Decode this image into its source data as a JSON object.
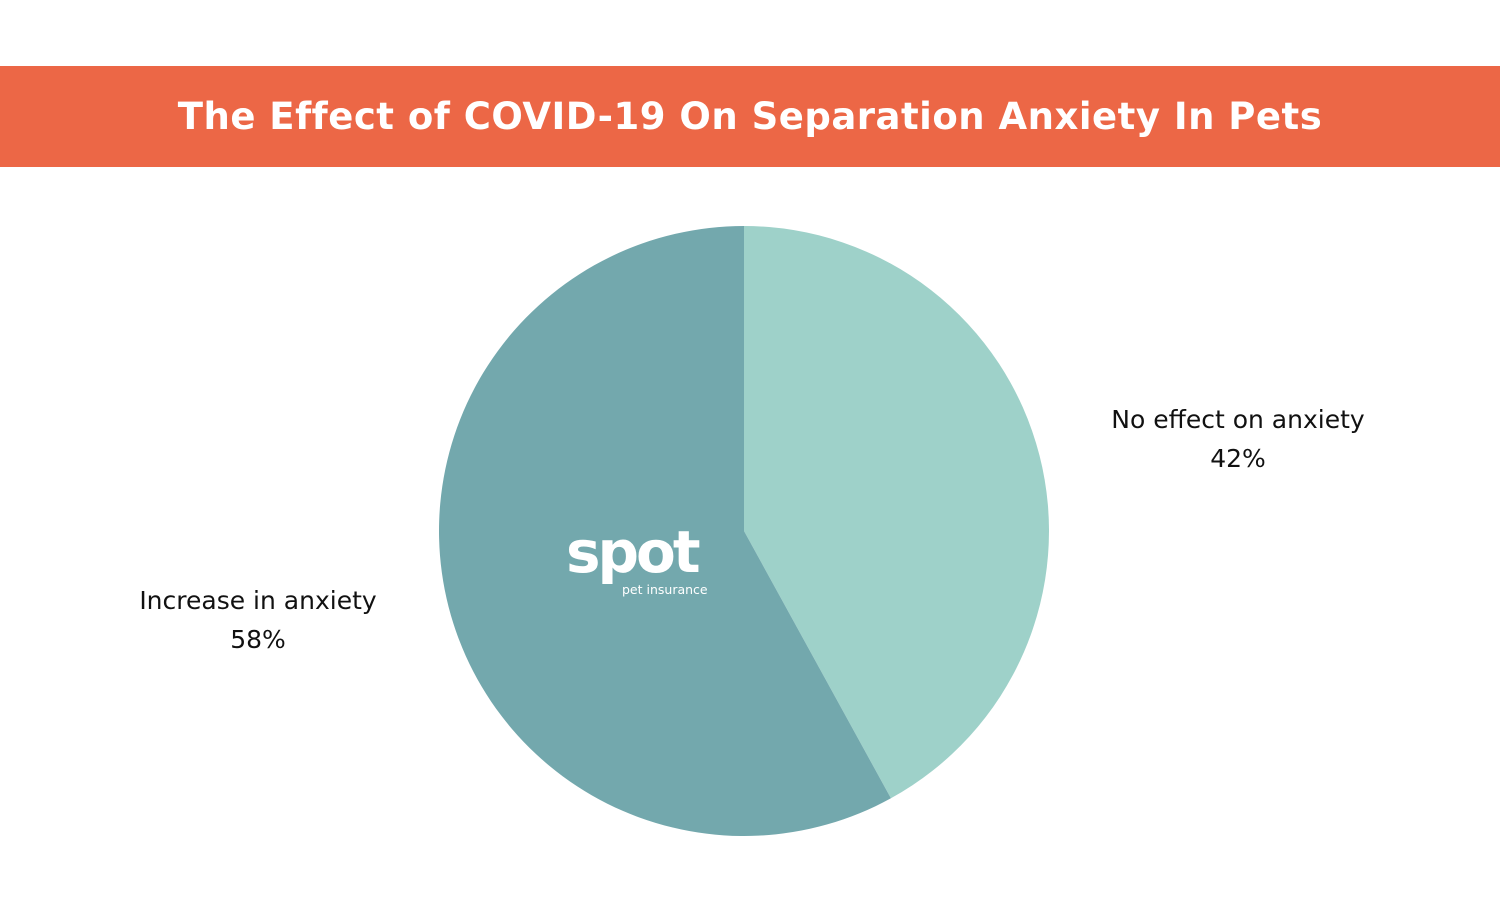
{
  "chart_data": {
    "type": "pie",
    "title": "The Effect of COVID-19 On Separation Anxiety In Pets",
    "slices": [
      {
        "label": "No effect on anxiety",
        "value": 42,
        "value_label": "42%",
        "color": "#9ED1C9"
      },
      {
        "label": "Increase in anxiety",
        "value": 58,
        "value_label": "58%",
        "color": "#73A8AD"
      }
    ],
    "start_angle": "top, clockwise"
  },
  "logo": {
    "text": "spot",
    "subtext": "pet insurance"
  },
  "colors": {
    "banner": "#EC6746",
    "logo": "#FFFFFF"
  }
}
